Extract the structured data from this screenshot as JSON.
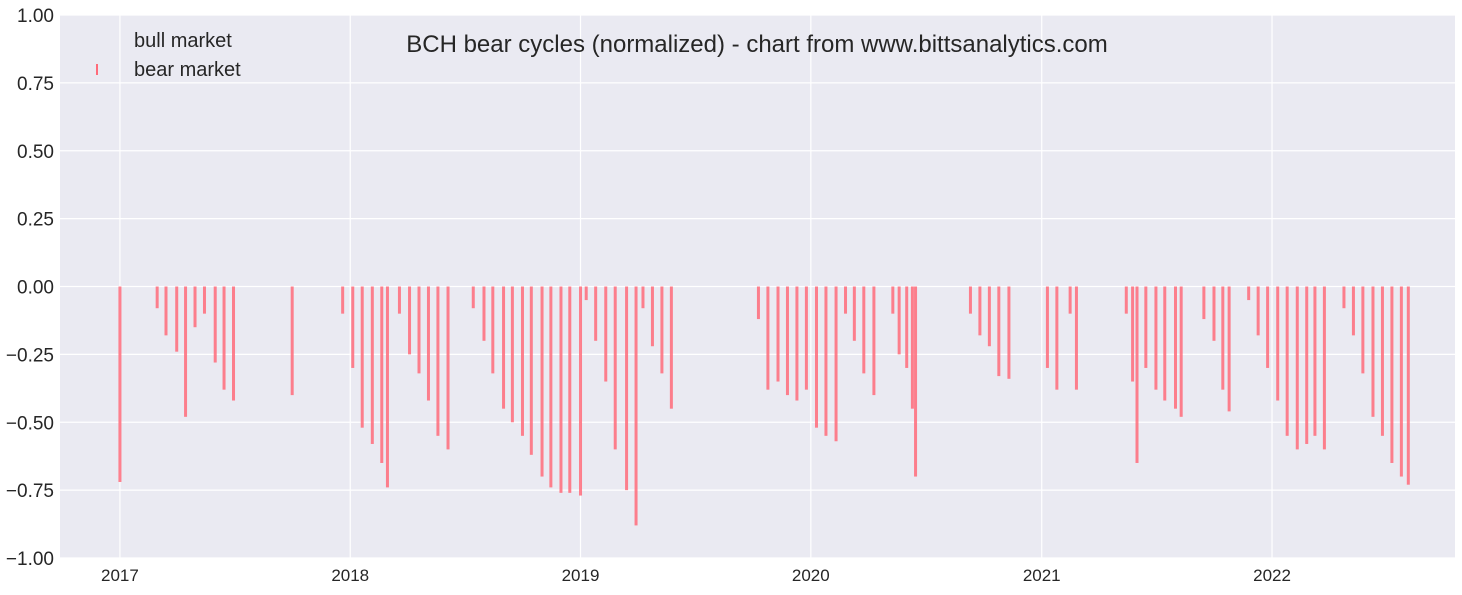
{
  "chart_data": {
    "type": "bar",
    "title": "BCH bear cycles (normalized)  - chart from www.bittsanalytics.com",
    "xlabel": "",
    "ylabel": "",
    "ylim": [
      -1.0,
      1.0
    ],
    "xlim": [
      "2016-09-28",
      "2022-10-18"
    ],
    "yticks": [
      1.0,
      0.75,
      0.5,
      0.25,
      0.0,
      -0.25,
      -0.5,
      -0.75,
      -1.0
    ],
    "ytick_labels": [
      "1.00",
      "0.75",
      "0.50",
      "0.25",
      "0.00",
      "−0.25",
      "−0.50",
      "−0.75",
      "−1.00"
    ],
    "xticks": [
      "2017-01-01",
      "2018-01-01",
      "2019-01-01",
      "2020-01-01",
      "2021-01-01",
      "2022-01-01"
    ],
    "xtick_labels": [
      "2017",
      "2018",
      "2019",
      "2020",
      "2021",
      "2022"
    ],
    "grid": true,
    "legend": {
      "placement": "top-left",
      "entries": [
        "bull market",
        "bear market"
      ]
    },
    "colors": {
      "background": "#eaeaf2",
      "grid": "#ffffff",
      "bear": "#ff6b7a",
      "bull": "#eaeaf2"
    },
    "series": [
      {
        "name": "bear market",
        "points": [
          [
            "2017-01-01",
            -0.72
          ],
          [
            "2017-03-01",
            -0.08
          ],
          [
            "2017-03-15",
            -0.18
          ],
          [
            "2017-04-01",
            -0.24
          ],
          [
            "2017-04-15",
            -0.48
          ],
          [
            "2017-04-30",
            -0.15
          ],
          [
            "2017-05-15",
            -0.1
          ],
          [
            "2017-06-01",
            -0.28
          ],
          [
            "2017-06-15",
            -0.38
          ],
          [
            "2017-06-30",
            -0.42
          ],
          [
            "2017-10-01",
            -0.4
          ],
          [
            "2017-12-20",
            -0.1
          ],
          [
            "2018-01-05",
            -0.3
          ],
          [
            "2018-01-20",
            -0.52
          ],
          [
            "2018-02-05",
            -0.58
          ],
          [
            "2018-02-20",
            -0.65
          ],
          [
            "2018-03-01",
            -0.74
          ],
          [
            "2018-03-20",
            -0.1
          ],
          [
            "2018-04-05",
            -0.25
          ],
          [
            "2018-04-20",
            -0.32
          ],
          [
            "2018-05-05",
            -0.42
          ],
          [
            "2018-05-20",
            -0.55
          ],
          [
            "2018-06-05",
            -0.6
          ],
          [
            "2018-07-15",
            -0.08
          ],
          [
            "2018-08-01",
            -0.2
          ],
          [
            "2018-08-15",
            -0.32
          ],
          [
            "2018-09-01",
            -0.45
          ],
          [
            "2018-09-15",
            -0.5
          ],
          [
            "2018-10-01",
            -0.55
          ],
          [
            "2018-10-15",
            -0.62
          ],
          [
            "2018-11-01",
            -0.7
          ],
          [
            "2018-11-15",
            -0.74
          ],
          [
            "2018-12-01",
            -0.76
          ],
          [
            "2018-12-15",
            -0.76
          ],
          [
            "2019-01-01",
            -0.77
          ],
          [
            "2019-01-10",
            -0.05
          ],
          [
            "2019-01-25",
            -0.2
          ],
          [
            "2019-02-10",
            -0.35
          ],
          [
            "2019-02-25",
            -0.6
          ],
          [
            "2019-03-15",
            -0.75
          ],
          [
            "2019-03-30",
            -0.88
          ],
          [
            "2019-04-10",
            -0.08
          ],
          [
            "2019-04-25",
            -0.22
          ],
          [
            "2019-05-10",
            -0.32
          ],
          [
            "2019-05-25",
            -0.45
          ],
          [
            "2019-10-10",
            -0.12
          ],
          [
            "2019-10-25",
            -0.38
          ],
          [
            "2019-11-10",
            -0.35
          ],
          [
            "2019-11-25",
            -0.4
          ],
          [
            "2019-12-10",
            -0.42
          ],
          [
            "2019-12-25",
            -0.38
          ],
          [
            "2020-01-10",
            -0.52
          ],
          [
            "2020-01-25",
            -0.55
          ],
          [
            "2020-02-10",
            -0.57
          ],
          [
            "2020-02-25",
            -0.1
          ],
          [
            "2020-03-10",
            -0.2
          ],
          [
            "2020-03-25",
            -0.32
          ],
          [
            "2020-04-10",
            -0.4
          ],
          [
            "2020-05-10",
            -0.1
          ],
          [
            "2020-05-20",
            -0.25
          ],
          [
            "2020-06-01",
            -0.3
          ],
          [
            "2020-06-10",
            -0.45
          ],
          [
            "2020-06-15",
            -0.7
          ],
          [
            "2020-09-10",
            -0.1
          ],
          [
            "2020-09-25",
            -0.18
          ],
          [
            "2020-10-10",
            -0.22
          ],
          [
            "2020-10-25",
            -0.33
          ],
          [
            "2020-11-10",
            -0.34
          ],
          [
            "2021-01-10",
            -0.3
          ],
          [
            "2021-01-25",
            -0.38
          ],
          [
            "2021-02-15",
            -0.1
          ],
          [
            "2021-02-25",
            -0.38
          ],
          [
            "2021-05-15",
            -0.1
          ],
          [
            "2021-05-25",
            -0.35
          ],
          [
            "2021-06-01",
            -0.65
          ],
          [
            "2021-06-15",
            -0.3
          ],
          [
            "2021-07-01",
            -0.38
          ],
          [
            "2021-07-15",
            -0.42
          ],
          [
            "2021-08-01",
            -0.45
          ],
          [
            "2021-08-10",
            -0.48
          ],
          [
            "2021-09-15",
            -0.12
          ],
          [
            "2021-10-01",
            -0.2
          ],
          [
            "2021-10-15",
            -0.38
          ],
          [
            "2021-10-25",
            -0.46
          ],
          [
            "2021-11-25",
            -0.05
          ],
          [
            "2021-12-10",
            -0.18
          ],
          [
            "2021-12-25",
            -0.3
          ],
          [
            "2022-01-10",
            -0.42
          ],
          [
            "2022-01-25",
            -0.55
          ],
          [
            "2022-02-10",
            -0.6
          ],
          [
            "2022-02-25",
            -0.58
          ],
          [
            "2022-03-10",
            -0.55
          ],
          [
            "2022-03-25",
            -0.6
          ],
          [
            "2022-04-25",
            -0.08
          ],
          [
            "2022-05-10",
            -0.18
          ],
          [
            "2022-05-25",
            -0.32
          ],
          [
            "2022-06-10",
            -0.48
          ],
          [
            "2022-06-25",
            -0.55
          ],
          [
            "2022-07-10",
            -0.65
          ],
          [
            "2022-07-25",
            -0.7
          ],
          [
            "2022-08-05",
            -0.73
          ]
        ]
      }
    ]
  }
}
